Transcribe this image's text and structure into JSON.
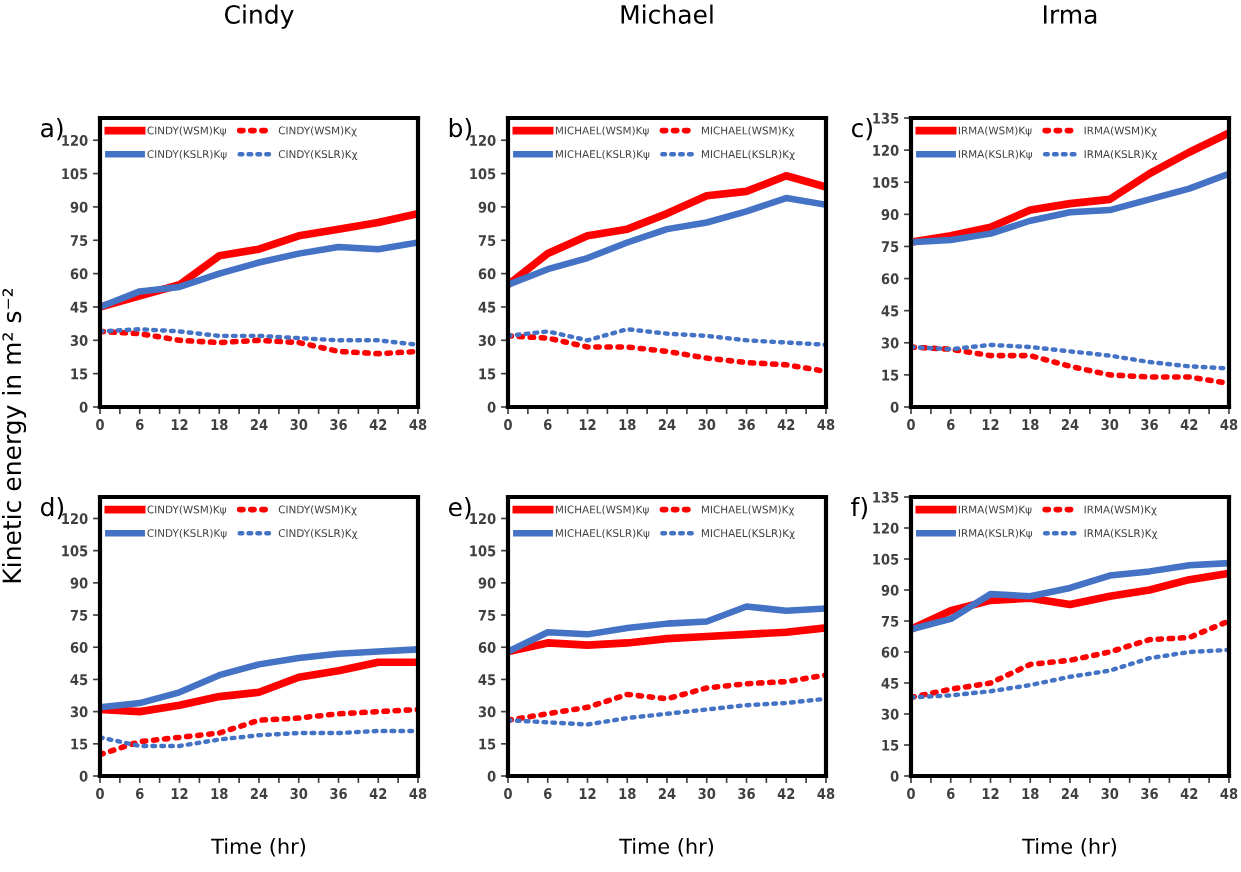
{
  "chart_data": [
    {
      "type": "line",
      "title": "Cindy",
      "ylabel": "Kinetic energy in m² s⁻²",
      "annotations": [
        "a)"
      ],
      "x": [
        0,
        6,
        12,
        18,
        24,
        30,
        36,
        42,
        48
      ],
      "xlim": [
        0,
        48
      ],
      "xticks": [
        0,
        6,
        12,
        18,
        24,
        30,
        36,
        42,
        48
      ],
      "ylim": [
        0,
        130
      ],
      "yticks": [
        0,
        15,
        30,
        45,
        60,
        75,
        90,
        105,
        120
      ],
      "legend": "top left",
      "grid": false,
      "marker": "none",
      "series": [
        {
          "name": "CINDY(WSM)Kψ",
          "color": "#ff0000",
          "line_style": "solid",
          "values": [
            45,
            50,
            55,
            68,
            71,
            77,
            80,
            83,
            87
          ]
        },
        {
          "name": "CINDY(WSM)Kχ",
          "color": "#ff0000",
          "line_style": "dotted",
          "values": [
            34,
            33,
            30,
            29,
            30,
            29,
            25,
            24,
            25
          ]
        },
        {
          "name": "CINDY(KSLR)Kψ",
          "color": "#4472c4",
          "line_style": "solid",
          "values": [
            45,
            52,
            54,
            60,
            65,
            69,
            72,
            71,
            74
          ]
        },
        {
          "name": "CINDY(KSLR)Kχ",
          "color": "#4472c4",
          "line_style": "dotted",
          "values": [
            34,
            35,
            34,
            32,
            32,
            31,
            30,
            30,
            28
          ]
        }
      ]
    },
    {
      "type": "line",
      "title": "Michael",
      "annotations": [
        "b)"
      ],
      "x": [
        0,
        6,
        12,
        18,
        24,
        30,
        36,
        42,
        48
      ],
      "xlim": [
        0,
        48
      ],
      "xticks": [
        0,
        6,
        12,
        18,
        24,
        30,
        36,
        42,
        48
      ],
      "ylim": [
        0,
        130
      ],
      "yticks": [
        0,
        15,
        30,
        45,
        60,
        75,
        90,
        105,
        120
      ],
      "legend": "top left",
      "grid": false,
      "marker": "none",
      "series": [
        {
          "name": "MICHAEL(WSM)Kψ",
          "color": "#ff0000",
          "line_style": "solid",
          "values": [
            55,
            69,
            77,
            80,
            87,
            95,
            97,
            104,
            99
          ]
        },
        {
          "name": "MICHAEL(WSM)Kχ",
          "color": "#ff0000",
          "line_style": "dotted",
          "values": [
            32,
            31,
            27,
            27,
            25,
            22,
            20,
            19,
            16
          ]
        },
        {
          "name": "MICHAEL(KSLR)Kψ",
          "color": "#4472c4",
          "line_style": "solid",
          "values": [
            55,
            62,
            67,
            74,
            80,
            83,
            88,
            94,
            91
          ]
        },
        {
          "name": "MICHAEL(KSLR)Kχ",
          "color": "#4472c4",
          "line_style": "dotted",
          "values": [
            32,
            34,
            30,
            35,
            33,
            32,
            30,
            29,
            28
          ]
        }
      ]
    },
    {
      "type": "line",
      "title": "Irma",
      "annotations": [
        "c)"
      ],
      "x": [
        0,
        6,
        12,
        18,
        24,
        30,
        36,
        42,
        48
      ],
      "xlim": [
        0,
        48
      ],
      "xticks": [
        0,
        6,
        12,
        18,
        24,
        30,
        36,
        42,
        48
      ],
      "ylim": [
        0,
        135
      ],
      "yticks": [
        0,
        15,
        30,
        45,
        60,
        75,
        90,
        105,
        120,
        135
      ],
      "legend": "top left",
      "grid": false,
      "marker": "none",
      "series": [
        {
          "name": "IRMA(WSM)Kψ",
          "color": "#ff0000",
          "line_style": "solid",
          "values": [
            77,
            80,
            84,
            92,
            95,
            97,
            109,
            119,
            128
          ]
        },
        {
          "name": "IRMA(WSM)Kχ",
          "color": "#ff0000",
          "line_style": "dotted",
          "values": [
            28,
            27,
            24,
            24,
            19,
            15,
            14,
            14,
            11
          ]
        },
        {
          "name": "IRMA(KSLR)Kψ",
          "color": "#4472c4",
          "line_style": "solid",
          "values": [
            77,
            78,
            81,
            87,
            91,
            92,
            97,
            102,
            109
          ]
        },
        {
          "name": "IRMA(KSLR)Kχ",
          "color": "#4472c4",
          "line_style": "dotted",
          "values": [
            28,
            27,
            29,
            28,
            26,
            24,
            21,
            19,
            18
          ]
        }
      ]
    },
    {
      "type": "line",
      "xlabel": "Time (hr)",
      "annotations": [
        "d)"
      ],
      "x": [
        0,
        6,
        12,
        18,
        24,
        30,
        36,
        42,
        48
      ],
      "xlim": [
        0,
        48
      ],
      "xticks": [
        0,
        6,
        12,
        18,
        24,
        30,
        36,
        42,
        48
      ],
      "ylim": [
        0,
        130
      ],
      "yticks": [
        0,
        15,
        30,
        45,
        60,
        75,
        90,
        105,
        120
      ],
      "legend": "top left",
      "grid": false,
      "marker": "none",
      "series": [
        {
          "name": "CINDY(WSM)Kψ",
          "color": "#ff0000",
          "line_style": "solid",
          "values": [
            31,
            30,
            33,
            37,
            39,
            46,
            49,
            53,
            53
          ]
        },
        {
          "name": "CINDY(WSM)Kχ",
          "color": "#ff0000",
          "line_style": "dotted",
          "values": [
            10,
            16,
            18,
            20,
            26,
            27,
            29,
            30,
            31
          ]
        },
        {
          "name": "CINDY(KSLR)Kψ",
          "color": "#4472c4",
          "line_style": "solid",
          "values": [
            32,
            34,
            39,
            47,
            52,
            55,
            57,
            58,
            59
          ]
        },
        {
          "name": "CINDY(KSLR)Kχ",
          "color": "#4472c4",
          "line_style": "dotted",
          "values": [
            18,
            14,
            14,
            17,
            19,
            20,
            20,
            21,
            21
          ]
        }
      ]
    },
    {
      "type": "line",
      "xlabel": "Time (hr)",
      "annotations": [
        "e)"
      ],
      "x": [
        0,
        6,
        12,
        18,
        24,
        30,
        36,
        42,
        48
      ],
      "xlim": [
        0,
        48
      ],
      "xticks": [
        0,
        6,
        12,
        18,
        24,
        30,
        36,
        42,
        48
      ],
      "ylim": [
        0,
        130
      ],
      "yticks": [
        0,
        15,
        30,
        45,
        60,
        75,
        90,
        105,
        120
      ],
      "legend": "top left",
      "grid": false,
      "marker": "none",
      "series": [
        {
          "name": "MICHAEL(WSM)Kψ",
          "color": "#ff0000",
          "line_style": "solid",
          "values": [
            58,
            62,
            61,
            62,
            64,
            65,
            66,
            67,
            69
          ]
        },
        {
          "name": "MICHAEL(WSM)Kχ",
          "color": "#ff0000",
          "line_style": "dotted",
          "values": [
            26,
            29,
            32,
            38,
            36,
            41,
            43,
            44,
            47
          ]
        },
        {
          "name": "MICHAEL(KSLR)Kψ",
          "color": "#4472c4",
          "line_style": "solid",
          "values": [
            58,
            67,
            66,
            69,
            71,
            72,
            79,
            77,
            78
          ]
        },
        {
          "name": "MICHAEL(KSLR)Kχ",
          "color": "#4472c4",
          "line_style": "dotted",
          "values": [
            26,
            25,
            24,
            27,
            29,
            31,
            33,
            34,
            36
          ]
        }
      ]
    },
    {
      "type": "line",
      "xlabel": "Time (hr)",
      "annotations": [
        "f)"
      ],
      "x": [
        0,
        6,
        12,
        18,
        24,
        30,
        36,
        42,
        48
      ],
      "xlim": [
        0,
        48
      ],
      "xticks": [
        0,
        6,
        12,
        18,
        24,
        30,
        36,
        42,
        48
      ],
      "ylim": [
        0,
        135
      ],
      "yticks": [
        0,
        15,
        30,
        45,
        60,
        75,
        90,
        105,
        120,
        135
      ],
      "legend": "top left",
      "grid": false,
      "marker": "none",
      "series": [
        {
          "name": "IRMA(WSM)Kψ",
          "color": "#ff0000",
          "line_style": "solid",
          "values": [
            71,
            80,
            85,
            86,
            83,
            87,
            90,
            95,
            98
          ]
        },
        {
          "name": "IRMA(WSM)Kχ",
          "color": "#ff0000",
          "line_style": "dotted",
          "values": [
            38,
            42,
            45,
            54,
            56,
            60,
            66,
            67,
            75
          ]
        },
        {
          "name": "IRMA(KSLR)Kψ",
          "color": "#4472c4",
          "line_style": "solid",
          "values": [
            71,
            76,
            88,
            87,
            91,
            97,
            99,
            102,
            103
          ]
        },
        {
          "name": "IRMA(KSLR)Kχ",
          "color": "#4472c4",
          "line_style": "dotted",
          "values": [
            38,
            39,
            41,
            44,
            48,
            51,
            57,
            60,
            61
          ]
        }
      ]
    }
  ]
}
